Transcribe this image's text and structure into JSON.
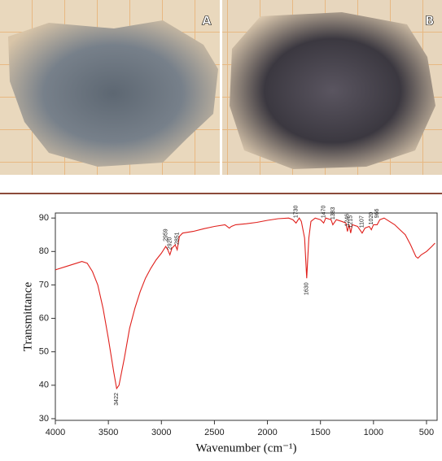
{
  "panels": [
    "A",
    "B"
  ],
  "chart_data": {
    "type": "line",
    "xlabel": "Wavenumber (cm⁻¹)",
    "ylabel": "Transmittance",
    "color": "#e0201c",
    "x": [
      4000,
      3900,
      3800,
      3750,
      3700,
      3650,
      3600,
      3550,
      3500,
      3450,
      3422,
      3400,
      3350,
      3300,
      3250,
      3200,
      3150,
      3100,
      3050,
      3000,
      2959,
      2940,
      2920,
      2900,
      2870,
      2851,
      2830,
      2800,
      2700,
      2600,
      2500,
      2400,
      2360,
      2340,
      2300,
      2200,
      2100,
      2000,
      1900,
      1800,
      1760,
      1730,
      1700,
      1680,
      1650,
      1630,
      1610,
      1590,
      1550,
      1500,
      1470,
      1450,
      1400,
      1383,
      1350,
      1300,
      1260,
      1246,
      1230,
      1215,
      1200,
      1150,
      1107,
      1080,
      1040,
      1020,
      1000,
      966,
      940,
      900,
      850,
      800,
      750,
      700,
      650,
      600,
      580,
      550,
      500,
      450,
      420
    ],
    "values": [
      74.5,
      75.5,
      76.5,
      77,
      76.5,
      74,
      70,
      63,
      54,
      44,
      39,
      40,
      48,
      57,
      63,
      68,
      72,
      75,
      77.5,
      79.5,
      81.5,
      80.5,
      79,
      81,
      82,
      80.5,
      84.5,
      85.5,
      86,
      86.8,
      87.5,
      88,
      87,
      87.5,
      88,
      88.3,
      88.7,
      89.3,
      89.8,
      90,
      89.5,
      88.5,
      90,
      89,
      84,
      72,
      84,
      89,
      90,
      89.5,
      88.5,
      90,
      89.5,
      88,
      89.5,
      89,
      88.5,
      86,
      88,
      85.5,
      88,
      87.5,
      85.5,
      87,
      87.5,
      86.5,
      88,
      88,
      89.5,
      90,
      89,
      88,
      86.5,
      85,
      82,
      78.5,
      78,
      79,
      80,
      81.5,
      82.5
    ],
    "xlim": [
      4000,
      400
    ],
    "ylim": [
      29.5,
      91.5
    ],
    "xticks": [
      4000,
      3500,
      3000,
      2500,
      2000,
      1500,
      1000,
      500
    ],
    "yticks": [
      30,
      40,
      50,
      60,
      70,
      80,
      90
    ],
    "annotations": [
      {
        "text": "3422",
        "x": 3422,
        "placement": "below"
      },
      {
        "text": "2959",
        "x": 2959,
        "placement": "above"
      },
      {
        "text": "2920",
        "x": 2920,
        "placement": "above"
      },
      {
        "text": "2851",
        "x": 2851,
        "placement": "above"
      },
      {
        "text": "1730",
        "x": 1730,
        "placement": "above"
      },
      {
        "text": "1630",
        "x": 1630,
        "placement": "below"
      },
      {
        "text": "1470",
        "x": 1470,
        "placement": "above"
      },
      {
        "text": "1383",
        "x": 1383,
        "placement": "above"
      },
      {
        "text": "1246",
        "x": 1246,
        "placement": "above"
      },
      {
        "text": "1215",
        "x": 1215,
        "placement": "above"
      },
      {
        "text": "1107",
        "x": 1107,
        "placement": "above"
      },
      {
        "text": "1020",
        "x": 1020,
        "placement": "above"
      },
      {
        "text": "966",
        "x": 966,
        "placement": "above"
      }
    ]
  }
}
